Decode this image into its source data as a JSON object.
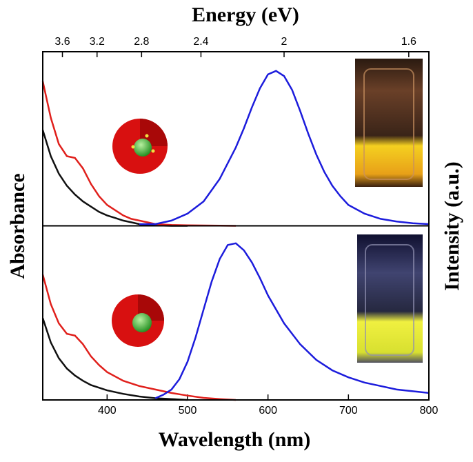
{
  "chart_data": {
    "type": "line",
    "x_label": "Wavelength (nm)",
    "x2_label": "Energy (eV)",
    "y_label": "Absorbance",
    "y2_label": "Intensity (a.u.)",
    "xlim": [
      320,
      800
    ],
    "xticks": [
      400,
      500,
      600,
      700,
      800
    ],
    "x2ticks": [
      3.6,
      3.2,
      2.8,
      2.4,
      2,
      1.6
    ],
    "panels": [
      {
        "ylim": [
          0,
          1
        ],
        "series": [
          {
            "color": "#111111",
            "x": [
              320,
              330,
              340,
              350,
              360,
              370,
              380,
              390,
              400,
              410,
              420,
              430,
              440,
              450,
              460,
              480,
              500
            ],
            "values": [
              0.55,
              0.4,
              0.3,
              0.23,
              0.18,
              0.14,
              0.11,
              0.08,
              0.06,
              0.045,
              0.03,
              0.02,
              0.01,
              0.005,
              0.002,
              0,
              0
            ]
          },
          {
            "color": "#e0201c",
            "x": [
              320,
              330,
              340,
              350,
              360,
              370,
              380,
              390,
              400,
              410,
              420,
              430,
              440,
              450,
              460,
              480,
              500,
              520,
              560
            ],
            "values": [
              0.83,
              0.62,
              0.47,
              0.4,
              0.39,
              0.33,
              0.24,
              0.17,
              0.12,
              0.09,
              0.06,
              0.04,
              0.03,
              0.02,
              0.01,
              0.005,
              0.003,
              0.002,
              0
            ]
          },
          {
            "color": "#1c1cdc",
            "x": [
              440,
              460,
              480,
              500,
              520,
              540,
              560,
              570,
              580,
              590,
              600,
              610,
              620,
              630,
              640,
              650,
              660,
              670,
              680,
              690,
              700,
              720,
              740,
              760,
              780,
              800
            ],
            "values": [
              0.01,
              0.01,
              0.03,
              0.07,
              0.14,
              0.27,
              0.45,
              0.56,
              0.68,
              0.79,
              0.87,
              0.89,
              0.86,
              0.78,
              0.66,
              0.53,
              0.41,
              0.31,
              0.23,
              0.17,
              0.12,
              0.07,
              0.04,
              0.025,
              0.015,
              0.01
            ]
          }
        ]
      },
      {
        "ylim": [
          0,
          1
        ],
        "series": [
          {
            "color": "#111111",
            "x": [
              320,
              330,
              340,
              350,
              360,
              370,
              380,
              400,
              420,
              440,
              460,
              480,
              500
            ],
            "values": [
              0.47,
              0.33,
              0.24,
              0.18,
              0.14,
              0.11,
              0.085,
              0.055,
              0.035,
              0.02,
              0.01,
              0.005,
              0
            ]
          },
          {
            "color": "#e0201c",
            "x": [
              320,
              330,
              340,
              350,
              360,
              370,
              380,
              390,
              400,
              420,
              440,
              460,
              480,
              500,
              520,
              540,
              560
            ],
            "values": [
              0.72,
              0.55,
              0.44,
              0.38,
              0.37,
              0.32,
              0.25,
              0.2,
              0.16,
              0.11,
              0.08,
              0.06,
              0.04,
              0.025,
              0.012,
              0.005,
              0
            ]
          },
          {
            "color": "#1c1cdc",
            "x": [
              460,
              470,
              480,
              490,
              500,
              510,
              520,
              530,
              540,
              550,
              560,
              570,
              580,
              590,
              600,
              620,
              640,
              660,
              680,
              700,
              720,
              740,
              760,
              780,
              800
            ],
            "values": [
              0.01,
              0.03,
              0.06,
              0.12,
              0.22,
              0.36,
              0.52,
              0.68,
              0.81,
              0.89,
              0.9,
              0.86,
              0.79,
              0.7,
              0.6,
              0.44,
              0.32,
              0.23,
              0.17,
              0.13,
              0.1,
              0.08,
              0.06,
              0.05,
              0.04
            ]
          }
        ]
      }
    ]
  }
}
